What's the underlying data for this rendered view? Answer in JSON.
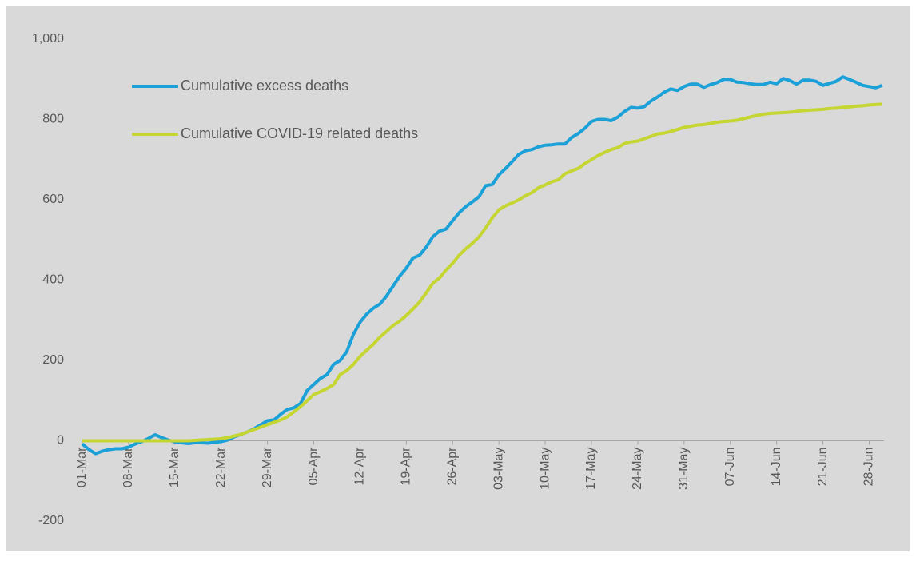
{
  "chart_data": {
    "type": "line",
    "categories": [
      "01-Mar",
      null,
      null,
      null,
      null,
      null,
      null,
      "08-Mar",
      null,
      null,
      null,
      null,
      null,
      null,
      "15-Mar",
      null,
      null,
      null,
      null,
      null,
      null,
      "22-Mar",
      null,
      null,
      null,
      null,
      null,
      null,
      "29-Mar",
      null,
      null,
      null,
      null,
      null,
      null,
      "05-Apr",
      null,
      null,
      null,
      null,
      null,
      null,
      "12-Apr",
      null,
      null,
      null,
      null,
      null,
      null,
      "19-Apr",
      null,
      null,
      null,
      null,
      null,
      null,
      "26-Apr",
      null,
      null,
      null,
      null,
      null,
      null,
      "03-May",
      null,
      null,
      null,
      null,
      null,
      null,
      "10-May",
      null,
      null,
      null,
      null,
      null,
      null,
      "17-May",
      null,
      null,
      null,
      null,
      null,
      null,
      "24-May",
      null,
      null,
      null,
      null,
      null,
      null,
      "31-May",
      null,
      null,
      null,
      null,
      null,
      null,
      "07-Jun",
      null,
      null,
      null,
      null,
      null,
      null,
      "14-Jun",
      null,
      null,
      null,
      null,
      null,
      null,
      "21-Jun",
      null,
      null,
      null,
      null,
      null,
      null,
      "28-Jun",
      null,
      null
    ],
    "series": [
      {
        "name": "Cumulative excess deaths",
        "color": "#1ba1d8",
        "values": [
          -8,
          -22,
          -32,
          -26,
          -22,
          -20,
          -20,
          -16,
          -8,
          -2,
          6,
          15,
          8,
          2,
          -3,
          -5,
          -7,
          -5,
          -5,
          -6,
          -4,
          -2,
          2,
          10,
          16,
          22,
          30,
          40,
          50,
          52,
          66,
          78,
          82,
          93,
          125,
          140,
          155,
          165,
          190,
          200,
          222,
          265,
          295,
          315,
          330,
          340,
          360,
          385,
          410,
          430,
          455,
          462,
          482,
          508,
          522,
          527,
          548,
          568,
          583,
          595,
          608,
          635,
          638,
          662,
          678,
          695,
          713,
          722,
          725,
          732,
          736,
          737,
          739,
          739,
          755,
          765,
          778,
          795,
          800,
          800,
          797,
          806,
          820,
          830,
          828,
          832,
          846,
          856,
          868,
          876,
          872,
          882,
          888,
          888,
          880,
          887,
          892,
          900,
          900,
          893,
          892,
          889,
          887,
          887,
          893,
          889,
          902,
          897,
          888,
          898,
          898,
          895,
          885,
          890,
          895,
          906,
          900,
          893,
          885,
          882,
          879,
          885
        ]
      },
      {
        "name": "Cumulative COVID-19 related deaths",
        "color": "#c5d632",
        "values": [
          0,
          0,
          0,
          0,
          0,
          0,
          0,
          0,
          0,
          0,
          0,
          0,
          0,
          0,
          0,
          0,
          0,
          1,
          2,
          3,
          4,
          5,
          8,
          12,
          16,
          22,
          28,
          34,
          40,
          46,
          52,
          60,
          72,
          85,
          100,
          115,
          122,
          130,
          140,
          165,
          175,
          190,
          210,
          225,
          240,
          258,
          272,
          287,
          298,
          312,
          328,
          345,
          368,
          392,
          405,
          425,
          442,
          462,
          478,
          492,
          508,
          530,
          555,
          575,
          585,
          592,
          600,
          610,
          618,
          630,
          637,
          645,
          650,
          665,
          672,
          678,
          690,
          700,
          710,
          718,
          725,
          730,
          740,
          744,
          746,
          752,
          758,
          764,
          766,
          770,
          775,
          780,
          783,
          786,
          787,
          790,
          793,
          795,
          796,
          798,
          802,
          806,
          810,
          813,
          815,
          816,
          817,
          818,
          820,
          822,
          823,
          824,
          825,
          827,
          828,
          830,
          831,
          833,
          834,
          836,
          837,
          838
        ]
      }
    ],
    "ylim": [
      -200,
      1000
    ],
    "yticks": [
      -200,
      0,
      200,
      400,
      600,
      800,
      {
        "value": 1000,
        "label": "1,000"
      }
    ]
  }
}
